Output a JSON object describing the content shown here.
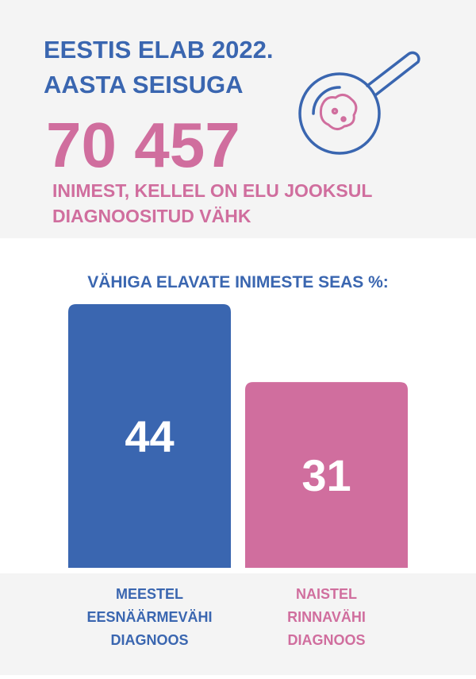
{
  "header": {
    "title_lines": [
      "EESTIS ELAB 2022.",
      "AASTA SEISUGA"
    ],
    "big_number": "70 457",
    "subtitle_lines": [
      "INIMEST, KELLEL ON ELU JOOKSUL",
      "DIAGNOOSITUD VÄHK"
    ]
  },
  "chart_data": {
    "type": "bar",
    "title": "VÄHIGA ELAVATE INIMESTE SEAS %:",
    "categories": [
      [
        "MEESTEL",
        "EESNÄÄRMEVÄHI",
        "DIAGNOOS"
      ],
      [
        "NAISTEL",
        "RINNAVÄHI",
        "DIAGNOOS"
      ]
    ],
    "values": [
      44,
      31
    ],
    "colors": [
      "#3a66b0",
      "#d06e9e"
    ]
  }
}
